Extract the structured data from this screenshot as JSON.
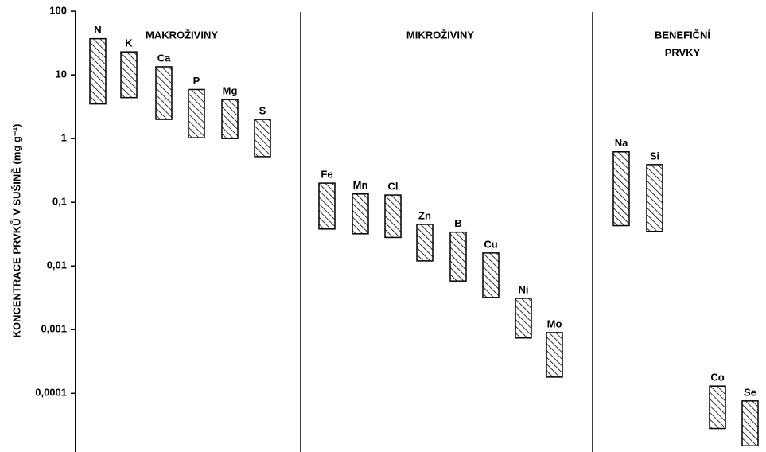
{
  "chart_data": {
    "type": "range-bar",
    "ylabel": "KONCENTRACE PRVKŮ V SUŠINĚ (mg g⁻¹)",
    "log": true,
    "ylim": [
      1.2e-05,
      150
    ],
    "yticks": [
      100,
      10,
      1,
      {
        "value": 0.1,
        "label": "0,1"
      },
      {
        "value": 0.01,
        "label": "0,01"
      },
      {
        "value": 0.001,
        "label": "0,001"
      },
      {
        "value": 0.0001,
        "label": "0,0001"
      }
    ],
    "color": "#000000",
    "groups": [
      {
        "title": [
          "MAKROŽIVINY"
        ],
        "categories": [
          "N",
          "K",
          "Ca",
          "P",
          "Mg",
          "S"
        ],
        "low": [
          3.5,
          4.4,
          2.0,
          1.03,
          1.0,
          0.52
        ],
        "high": [
          37,
          23,
          13.4,
          5.9,
          4.1,
          2.0
        ]
      },
      {
        "title": [
          "MIKROŽIVINY"
        ],
        "categories": [
          "Fe",
          "Mn",
          "Cl",
          "Zn",
          "B",
          "Cu",
          "Ni",
          "Mo"
        ],
        "low": [
          0.038,
          0.032,
          0.028,
          0.012,
          0.0058,
          0.0032,
          0.00074,
          0.00018
        ],
        "high": [
          0.2,
          0.135,
          0.13,
          0.045,
          0.034,
          0.016,
          0.0031,
          0.0009
        ]
      },
      {
        "title": [
          "BENEFIČNÍ",
          "PRVKY"
        ],
        "categories": [
          "Na",
          "Si",
          "Co",
          "Se"
        ],
        "low": [
          0.043,
          0.035,
          2.8e-05,
          1.5e-05
        ],
        "high": [
          0.62,
          0.39,
          0.00013,
          7.6e-05
        ]
      }
    ]
  }
}
